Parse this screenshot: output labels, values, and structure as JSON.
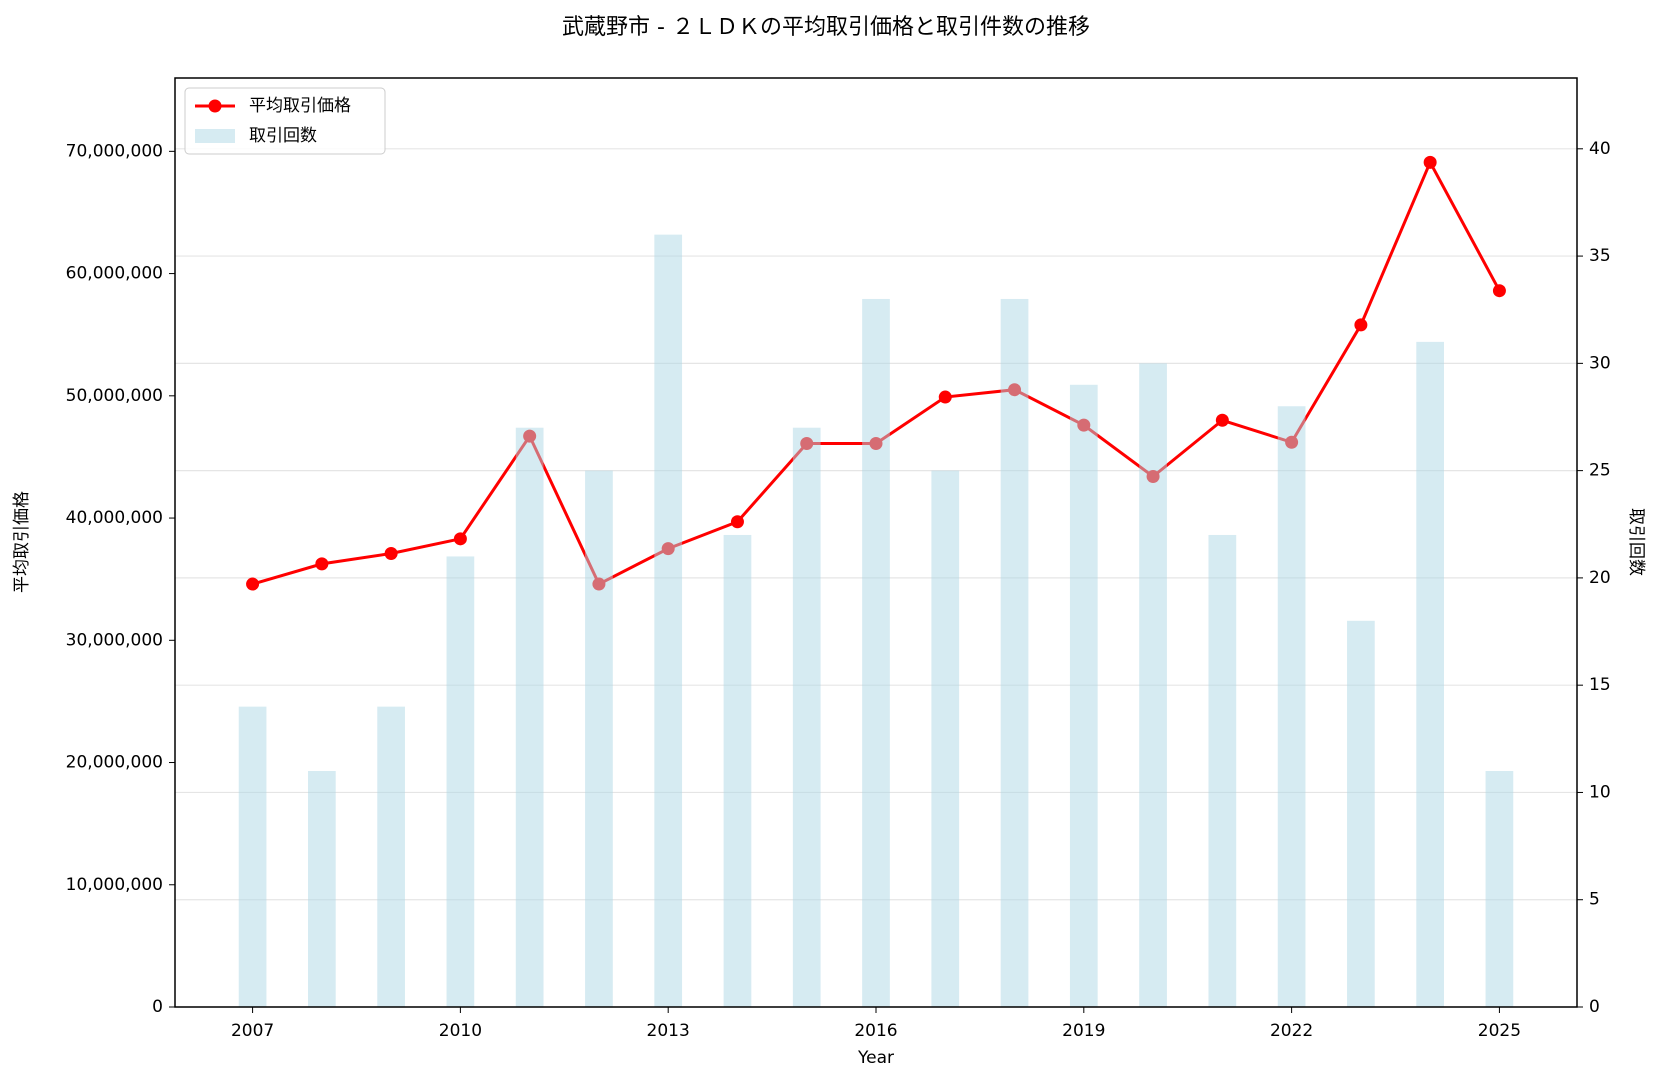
{
  "chart_data": {
    "type": "combo",
    "title": "武蔵野市 - ２ＬＤＫの平均取引価格と取引件数の推移",
    "x_label": "Year",
    "y_label": "平均取引価格",
    "y2_label": "取引回数",
    "x": [
      2007,
      2008,
      2009,
      2010,
      2011,
      2012,
      2013,
      2014,
      2015,
      2016,
      2017,
      2018,
      2019,
      2020,
      2021,
      2022,
      2023,
      2024,
      2025
    ],
    "series": [
      {
        "name": "平均取引価格",
        "type": "line",
        "color": "#ff0000",
        "values": [
          34600000,
          36250000,
          37100000,
          38300000,
          46700000,
          34600000,
          37500000,
          39700000,
          46100000,
          46100000,
          49900000,
          50500000,
          47600000,
          43400000,
          48000000,
          46200000,
          55800000,
          69100000,
          58600000
        ]
      },
      {
        "name": "取引回数",
        "type": "bar",
        "axis": "y2",
        "color": "#add8e6",
        "values": [
          14,
          11,
          14,
          21,
          27,
          25,
          36,
          22,
          27,
          33,
          25,
          33,
          29,
          30,
          22,
          28,
          18,
          31,
          11
        ]
      }
    ],
    "xlim": [
      2005.88,
      2026.12
    ],
    "xticks": [
      2007,
      2010,
      2013,
      2016,
      2019,
      2022,
      2025
    ],
    "ylim": [
      0,
      76000000
    ],
    "yticks": [
      0,
      {
        "value": 10000000,
        "label": "10,000,000"
      },
      {
        "value": 20000000,
        "label": "20,000,000"
      },
      {
        "value": 30000000,
        "label": "30,000,000"
      },
      {
        "value": 40000000,
        "label": "40,000,000"
      },
      {
        "value": 50000000,
        "label": "50,000,000"
      },
      {
        "value": 60000000,
        "label": "60,000,000"
      },
      {
        "value": 70000000,
        "label": "70,000,000"
      }
    ],
    "y2lim": [
      0,
      43.3
    ],
    "y2ticks": [
      0,
      5,
      10,
      15,
      20,
      25,
      30,
      35,
      40
    ],
    "grid": "y2",
    "legend": "upper left",
    "y_color": "#8b0000",
    "y2_color": "#00008b"
  }
}
